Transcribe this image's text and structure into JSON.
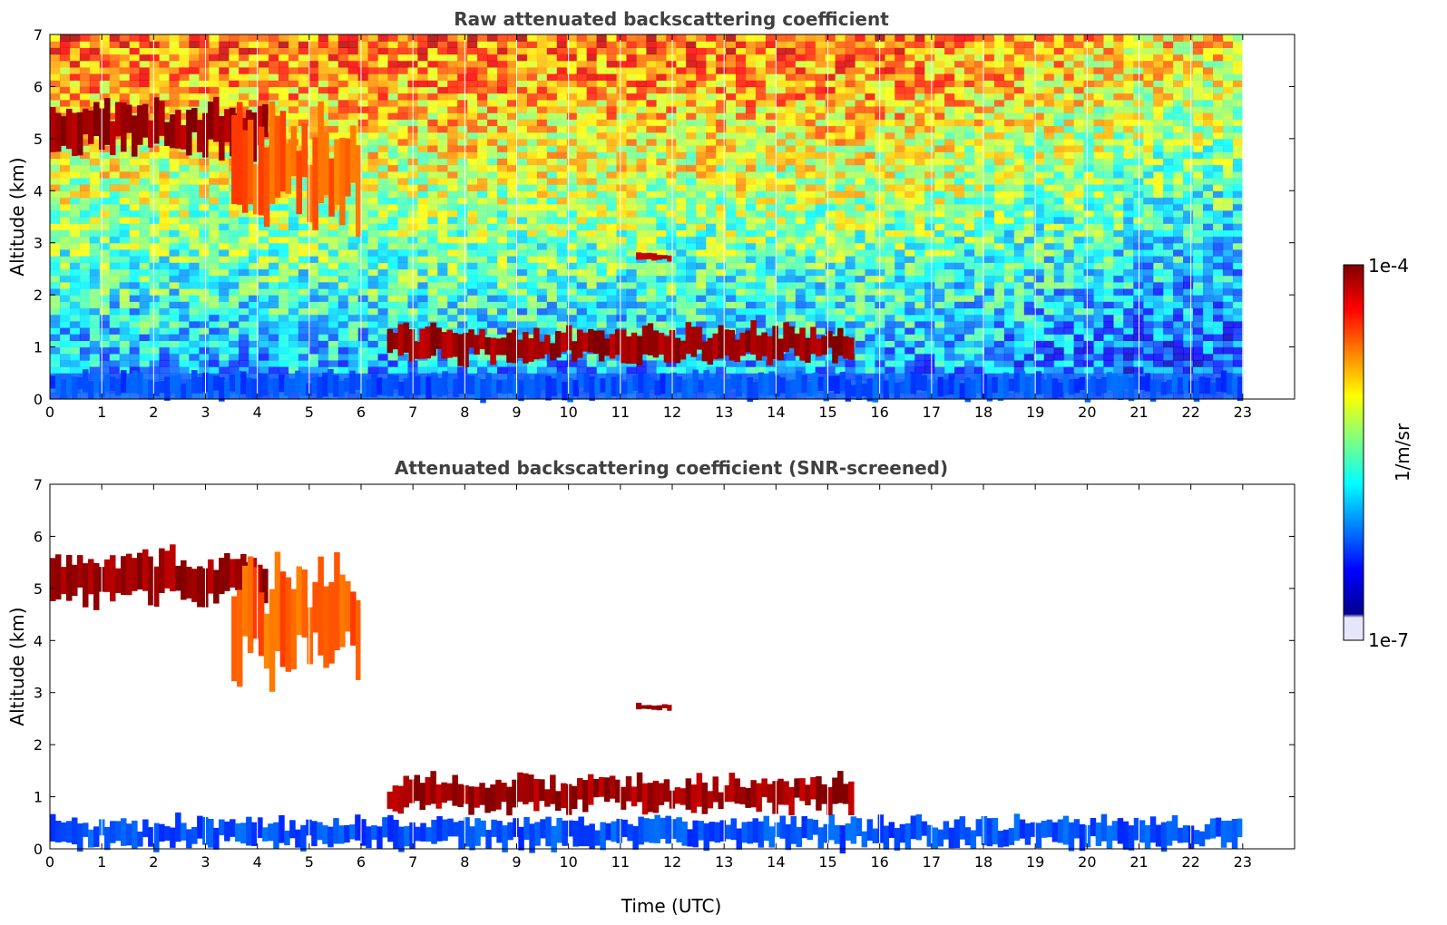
{
  "colors": {
    "jet": [
      "#00008f",
      "#0000ff",
      "#0080ff",
      "#00ffff",
      "#80ff80",
      "#ffff00",
      "#ff8000",
      "#ff0000",
      "#800000"
    ],
    "jet_low": "#e6e6fa",
    "title": "#404040"
  },
  "chart_data": [
    {
      "type": "heatmap",
      "title": "Raw attenuated backscattering coefficient",
      "xlabel": "",
      "ylabel": "Altitude (km)",
      "xlim": [
        0,
        24
      ],
      "ylim": [
        0,
        7
      ],
      "xticks": [
        "0",
        "1",
        "2",
        "3",
        "4",
        "5",
        "6",
        "7",
        "8",
        "9",
        "10",
        "11",
        "12",
        "13",
        "14",
        "15",
        "16",
        "17",
        "18",
        "19",
        "20",
        "21",
        "22",
        "23"
      ],
      "yticks": [
        "0",
        "1",
        "2",
        "3",
        "4",
        "5",
        "6",
        "7"
      ],
      "data_end_hour": 23,
      "features": [
        {
          "name": "boundary layer",
          "t": [
            0,
            23
          ],
          "alt": [
            0,
            0.5
          ],
          "level": 0.2
        },
        {
          "name": "low cloud",
          "t": [
            6.5,
            15.5
          ],
          "alt": [
            0.7,
            1.4
          ],
          "level": 0.97
        },
        {
          "name": "mid-level cloud",
          "t": [
            11.3,
            12.0
          ],
          "alt": [
            2.65,
            2.8
          ],
          "level": 0.95
        },
        {
          "name": "upper cloud",
          "t": [
            0,
            4.2
          ],
          "alt": [
            4.7,
            5.7
          ],
          "level": 0.97
        },
        {
          "name": "precipitating layer",
          "t": [
            3.5,
            6.0
          ],
          "alt": [
            3.3,
            5.4
          ],
          "level": 0.78
        }
      ]
    },
    {
      "type": "heatmap",
      "title": "Attenuated backscattering coefficient (SNR-screened)",
      "xlabel": "Time (UTC)",
      "ylabel": "Altitude (km)",
      "xlim": [
        0,
        24
      ],
      "ylim": [
        0,
        7
      ],
      "xticks": [
        "0",
        "1",
        "2",
        "3",
        "4",
        "5",
        "6",
        "7",
        "8",
        "9",
        "10",
        "11",
        "12",
        "13",
        "14",
        "15",
        "16",
        "17",
        "18",
        "19",
        "20",
        "21",
        "22",
        "23"
      ],
      "yticks": [
        "0",
        "1",
        "2",
        "3",
        "4",
        "5",
        "6",
        "7"
      ],
      "data_end_hour": 23,
      "features": [
        {
          "name": "boundary layer",
          "t": [
            0,
            23
          ],
          "alt": [
            0,
            0.6
          ],
          "level": 0.2
        },
        {
          "name": "low cloud",
          "t": [
            6.5,
            15.5
          ],
          "alt": [
            0.7,
            1.4
          ],
          "level": 0.97
        },
        {
          "name": "mid-level cloud",
          "t": [
            11.3,
            12.0
          ],
          "alt": [
            2.65,
            2.8
          ],
          "level": 0.95
        },
        {
          "name": "upper cloud",
          "t": [
            0,
            4.2
          ],
          "alt": [
            4.7,
            5.7
          ],
          "level": 0.97
        },
        {
          "name": "precipitating layer",
          "t": [
            3.5,
            6.0
          ],
          "alt": [
            3.3,
            5.4
          ],
          "level": 0.78
        }
      ]
    }
  ],
  "colorbar": {
    "max_label": "1e-4",
    "min_label": "1e-7",
    "unit_label": "1/m/sr"
  }
}
